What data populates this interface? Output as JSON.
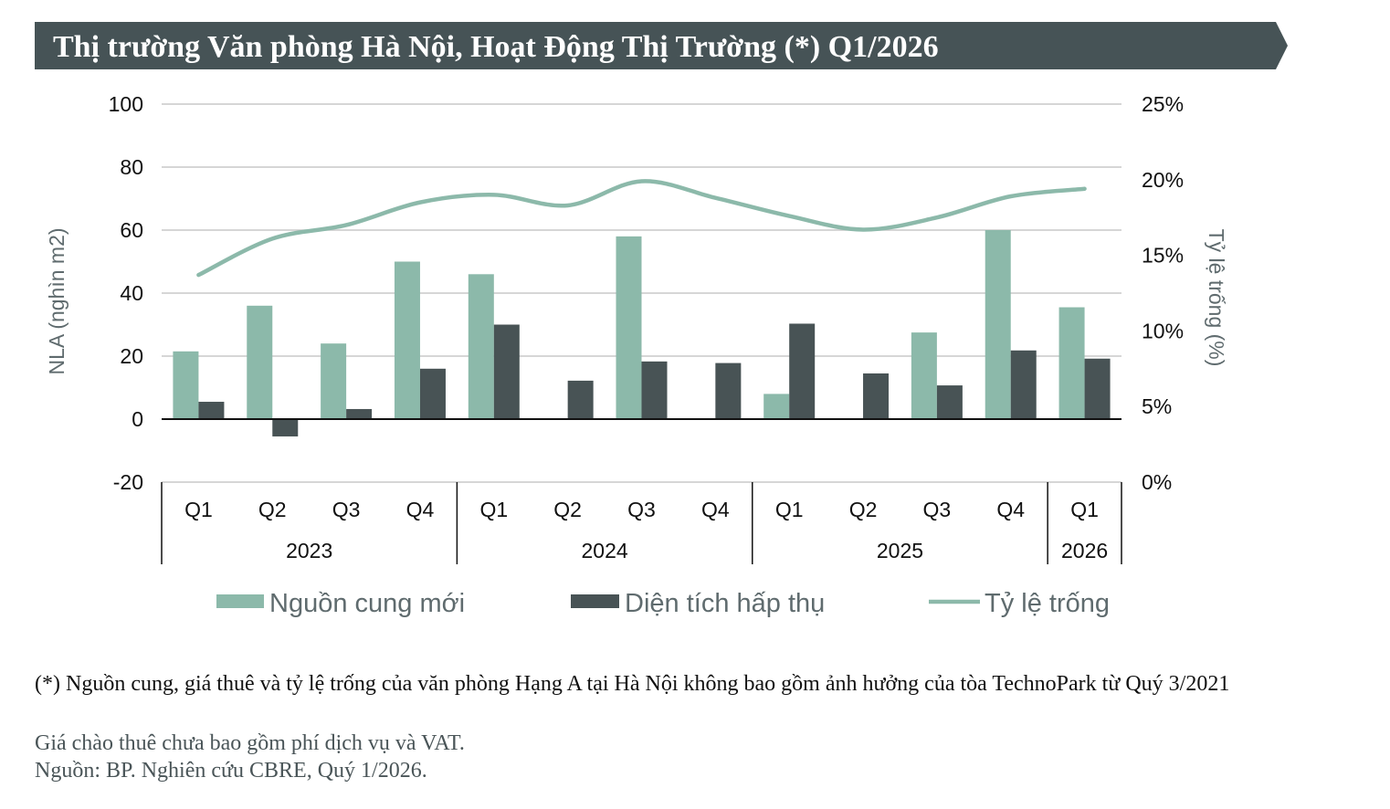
{
  "title": "Thị trường Văn phòng Hà Nội, Hoạt Động Thị Trường (*) Q1/2026",
  "colors": {
    "banner": "#465356",
    "supply": "#8cb9aa",
    "absorption": "#485355",
    "vacancy": "#8cb9aa"
  },
  "chart_data": {
    "type": "bar+line",
    "quarters": [
      "Q1",
      "Q2",
      "Q3",
      "Q4",
      "Q1",
      "Q2",
      "Q3",
      "Q4",
      "Q1",
      "Q2",
      "Q3",
      "Q4",
      "Q1"
    ],
    "years": [
      {
        "label": "2023",
        "span": 4
      },
      {
        "label": "2024",
        "span": 4
      },
      {
        "label": "2025",
        "span": 4
      },
      {
        "label": "2026",
        "span": 1
      }
    ],
    "ylabel_left": "NLA (nghìn m2)",
    "ylabel_right": "Tỷ lệ trống (%)",
    "yticks_left": [
      "100",
      "80",
      "60",
      "40",
      "20",
      "0",
      "-20"
    ],
    "yticks_right": [
      "25%",
      "20%",
      "15%",
      "10%",
      "5%",
      "0%"
    ],
    "ylim_left": [
      -20,
      100
    ],
    "ylim_right": [
      0,
      25
    ],
    "grid": true,
    "legend_position": "bottom",
    "series": [
      {
        "name": "Nguồn cung mới",
        "type": "bar",
        "axis": "left",
        "values": [
          21.5,
          36,
          24,
          50,
          46,
          0,
          58,
          0,
          8,
          0,
          27.5,
          60,
          35.5
        ]
      },
      {
        "name": "Diện tích hấp thụ",
        "type": "bar",
        "axis": "left",
        "values": [
          5.5,
          -5.5,
          3.2,
          16,
          30,
          12.2,
          18.3,
          17.8,
          30.3,
          14.5,
          10.7,
          21.8,
          19.2
        ]
      },
      {
        "name": "Tỷ lệ trống",
        "type": "line",
        "axis": "right",
        "values": [
          13.7,
          16.1,
          17.0,
          18.5,
          19.0,
          18.3,
          19.9,
          18.8,
          17.6,
          16.7,
          17.5,
          18.9,
          19.4
        ]
      }
    ]
  },
  "footnote": "(*) Nguồn cung, giá thuê và tỷ lệ trống của văn phòng Hạng A tại Hà Nội không bao gồm ảnh hưởng của tòa TechnoPark từ Quý 3/2021",
  "note": "Giá chào thuê chưa bao gồm phí dịch vụ và VAT.",
  "source": "Nguồn: BP. Nghiên cứu CBRE, Quý 1/2026."
}
